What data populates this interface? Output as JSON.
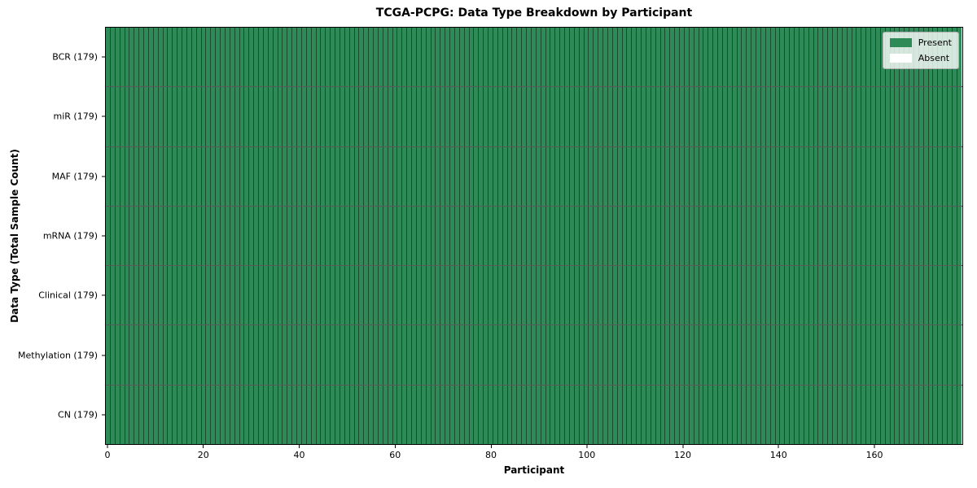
{
  "chart_data": {
    "type": "heatmap",
    "title": "TCGA-PCPG: Data Type Breakdown by Participant",
    "xlabel": "Participant",
    "ylabel": "Data Type (Total Sample Count)",
    "n_participants": 179,
    "x_range": [
      -0.5,
      178.5
    ],
    "x_ticks": [
      0,
      20,
      40,
      60,
      80,
      100,
      120,
      140,
      160
    ],
    "rows": [
      {
        "label": "BCR (179)",
        "data_type": "BCR",
        "total_samples": 179,
        "present": 179,
        "absent": 0
      },
      {
        "label": "miR (179)",
        "data_type": "miR",
        "total_samples": 179,
        "present": 179,
        "absent": 0
      },
      {
        "label": "MAF (179)",
        "data_type": "MAF",
        "total_samples": 179,
        "present": 179,
        "absent": 0
      },
      {
        "label": "mRNA (179)",
        "data_type": "mRNA",
        "total_samples": 179,
        "present": 179,
        "absent": 0
      },
      {
        "label": "Clinical (179)",
        "data_type": "Clinical",
        "total_samples": 179,
        "present": 179,
        "absent": 0
      },
      {
        "label": "Methylation (179)",
        "data_type": "Methylation",
        "total_samples": 179,
        "present": 179,
        "absent": 0
      },
      {
        "label": "CN (179)",
        "data_type": "CN",
        "total_samples": 179,
        "present": 179,
        "absent": 0
      }
    ],
    "legend": [
      {
        "label": "Present",
        "color": "#2e8b57"
      },
      {
        "label": "Absent",
        "color": "#ffffff"
      }
    ],
    "colors": {
      "present": "#2e8b57",
      "absent": "#ffffff",
      "cell_border": "rgba(0,0,0,0.45)",
      "row_border": "rgba(0,0,0,0.65)",
      "spine": "#000000",
      "background": "#ffffff"
    },
    "legend_position": "upper right",
    "grid": true
  }
}
